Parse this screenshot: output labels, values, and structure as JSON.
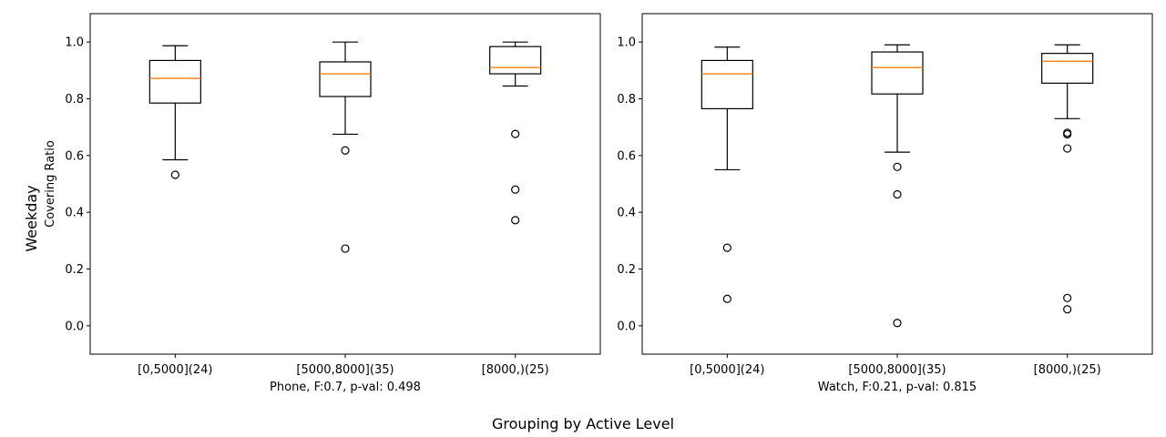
{
  "figure": {
    "row_label": "Weekday",
    "suptitle_x": "Grouping by Active Level"
  },
  "chart_data": [
    {
      "type": "boxplot",
      "ylabel": "Covering Ratio",
      "xlabel": "Phone, F:0.7, p-val: 0.498",
      "ylim": [
        -0.1,
        1.1
      ],
      "yticks": [
        0.0,
        0.2,
        0.4,
        0.6,
        0.8,
        1.0
      ],
      "categories": [
        "[0,5000](24)",
        "[5000,8000](35)",
        "[8000,)(25)"
      ],
      "boxes": [
        {
          "whisker_low": 0.585,
          "q1": 0.785,
          "median": 0.872,
          "q3": 0.935,
          "whisker_high": 0.987,
          "outliers": [
            0.532
          ]
        },
        {
          "whisker_low": 0.675,
          "q1": 0.808,
          "median": 0.888,
          "q3": 0.93,
          "whisker_high": 1.0,
          "outliers": [
            0.618,
            0.272
          ]
        },
        {
          "whisker_low": 0.845,
          "q1": 0.888,
          "median": 0.91,
          "q3": 0.984,
          "whisker_high": 1.0,
          "outliers": [
            0.676,
            0.48,
            0.372
          ]
        }
      ],
      "box_color": "#000000",
      "median_color": "#ff7f0e",
      "grid": false
    },
    {
      "type": "boxplot",
      "ylabel": "",
      "xlabel": "Watch, F:0.21, p-val: 0.815",
      "ylim": [
        -0.1,
        1.1
      ],
      "yticks": [
        0.0,
        0.2,
        0.4,
        0.6,
        0.8,
        1.0
      ],
      "categories": [
        "[0,5000](24)",
        "[5000,8000](35)",
        "[8000,)(25)"
      ],
      "boxes": [
        {
          "whisker_low": 0.55,
          "q1": 0.765,
          "median": 0.888,
          "q3": 0.935,
          "whisker_high": 0.982,
          "outliers": [
            0.275,
            0.095
          ]
        },
        {
          "whisker_low": 0.612,
          "q1": 0.817,
          "median": 0.91,
          "q3": 0.965,
          "whisker_high": 0.99,
          "outliers": [
            0.56,
            0.463,
            0.01
          ]
        },
        {
          "whisker_low": 0.73,
          "q1": 0.855,
          "median": 0.932,
          "q3": 0.96,
          "whisker_high": 0.99,
          "outliers": [
            0.68,
            0.675,
            0.625,
            0.098,
            0.058
          ]
        }
      ],
      "box_color": "#000000",
      "median_color": "#ff7f0e",
      "grid": false
    }
  ]
}
